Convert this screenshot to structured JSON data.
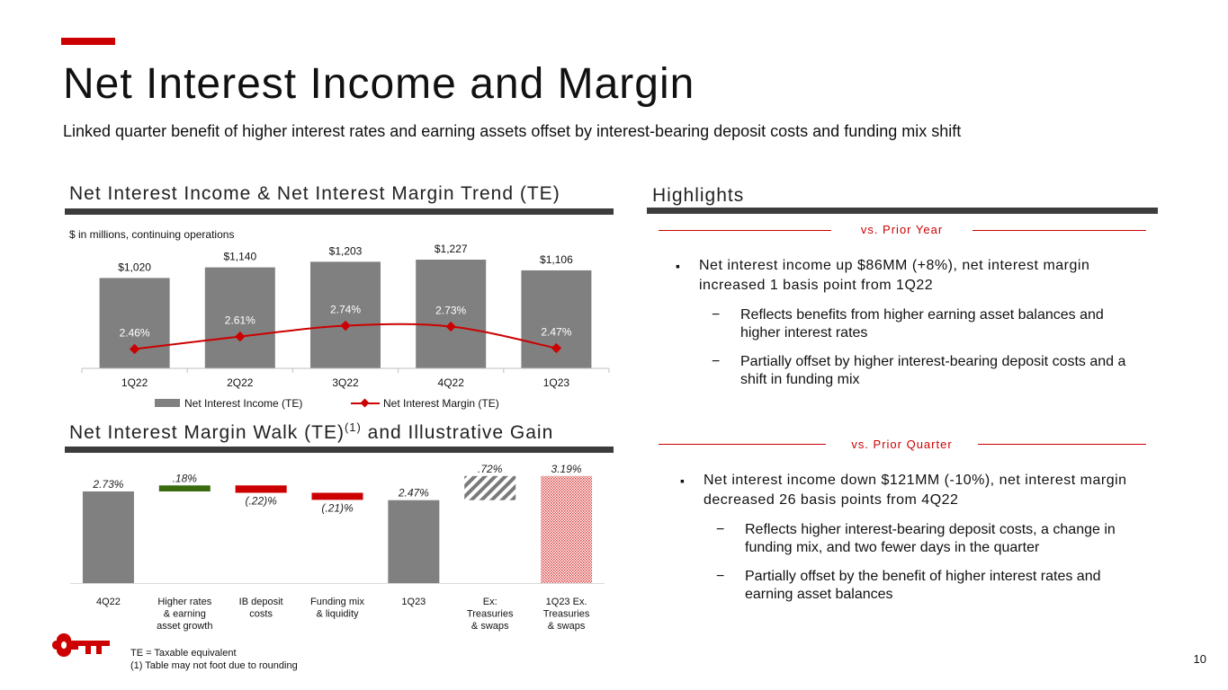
{
  "title": "Net Interest Income and Margin",
  "subtitle": "Linked quarter benefit of higher interest rates and earning assets offset by interest-bearing deposit costs and funding mix shift",
  "colors": {
    "accent": "#cc0000",
    "bar_gray": "#808080",
    "positive": "#3a6b0f",
    "negative": "#cc0000",
    "rule": "#3c3c3c"
  },
  "left": {
    "trend_title": "Net Interest Income & Net Interest Margin Trend (TE)",
    "units_note": "$ in millions, continuing operations",
    "walk_title_main": "Net Interest Margin Walk (TE)",
    "walk_title_sup": "(1)",
    "walk_title_tail": " and Illustrative Gain"
  },
  "chart_data": [
    {
      "type": "bar",
      "categories": [
        "1Q22",
        "2Q22",
        "3Q22",
        "4Q22",
        "1Q23"
      ],
      "series": [
        {
          "name": "Net Interest Income (TE)",
          "type": "bar",
          "values": [
            1020,
            1140,
            1203,
            1227,
            1106
          ],
          "labels": [
            "$1,020",
            "$1,140",
            "$1,203",
            "$1,227",
            "$1,106"
          ]
        },
        {
          "name": "Net Interest Margin (TE)",
          "type": "line",
          "values": [
            2.46,
            2.61,
            2.74,
            2.73,
            2.47
          ],
          "labels": [
            "2.46%",
            "2.61%",
            "2.74%",
            "2.73%",
            "2.47%"
          ]
        }
      ],
      "legend": "bottom",
      "grid": false
    },
    {
      "type": "bar",
      "subtype": "waterfall",
      "categories": [
        "4Q22",
        "Higher rates & earning asset growth",
        "IB deposit costs",
        "Funding mix & liquidity",
        "1Q23",
        "Ex: Treasuries & swaps",
        "1Q23 Ex. Treasuries & swaps"
      ],
      "category_lines": [
        [
          "4Q22"
        ],
        [
          "Higher rates",
          "& earning",
          "asset growth"
        ],
        [
          "IB deposit",
          "costs"
        ],
        [
          "Funding mix",
          "& liquidity"
        ],
        [
          "1Q23"
        ],
        [
          "Ex:",
          "Treasuries",
          "& swaps"
        ],
        [
          "1Q23 Ex.",
          "Treasuries",
          "& swaps"
        ]
      ],
      "values": [
        2.73,
        0.18,
        -0.22,
        -0.21,
        2.47,
        0.72,
        3.19
      ],
      "kinds": [
        "total",
        "increase",
        "decrease",
        "decrease",
        "total",
        "illustrative",
        "illustrative-total"
      ],
      "labels": [
        "2.73%",
        ".18%",
        "(.22)%",
        "(.21)%",
        "2.47%",
        ".72%",
        "3.19%"
      ],
      "grid": false
    }
  ],
  "highlights": {
    "title": "Highlights",
    "prior_year": {
      "label": "vs. Prior Year",
      "bullet": "Net interest income up $86MM (+8%), net interest margin increased 1 basis point from 1Q22",
      "subs": [
        "Reflects benefits from higher earning asset balances and higher interest rates",
        "Partially offset by higher interest-bearing deposit costs and a shift in funding mix"
      ]
    },
    "prior_quarter": {
      "label": "vs. Prior Quarter",
      "bullet": "Net interest income down $121MM (-10%), net interest margin decreased 26 basis points from 4Q22",
      "subs": [
        "Reflects higher interest-bearing deposit costs, a change in funding mix, and two fewer days in the quarter",
        "Partially offset by the benefit of higher interest rates and earning asset balances"
      ]
    }
  },
  "footnotes": [
    "TE = Taxable equivalent",
    "(1) Table may not foot due to rounding"
  ],
  "page_number": "10"
}
